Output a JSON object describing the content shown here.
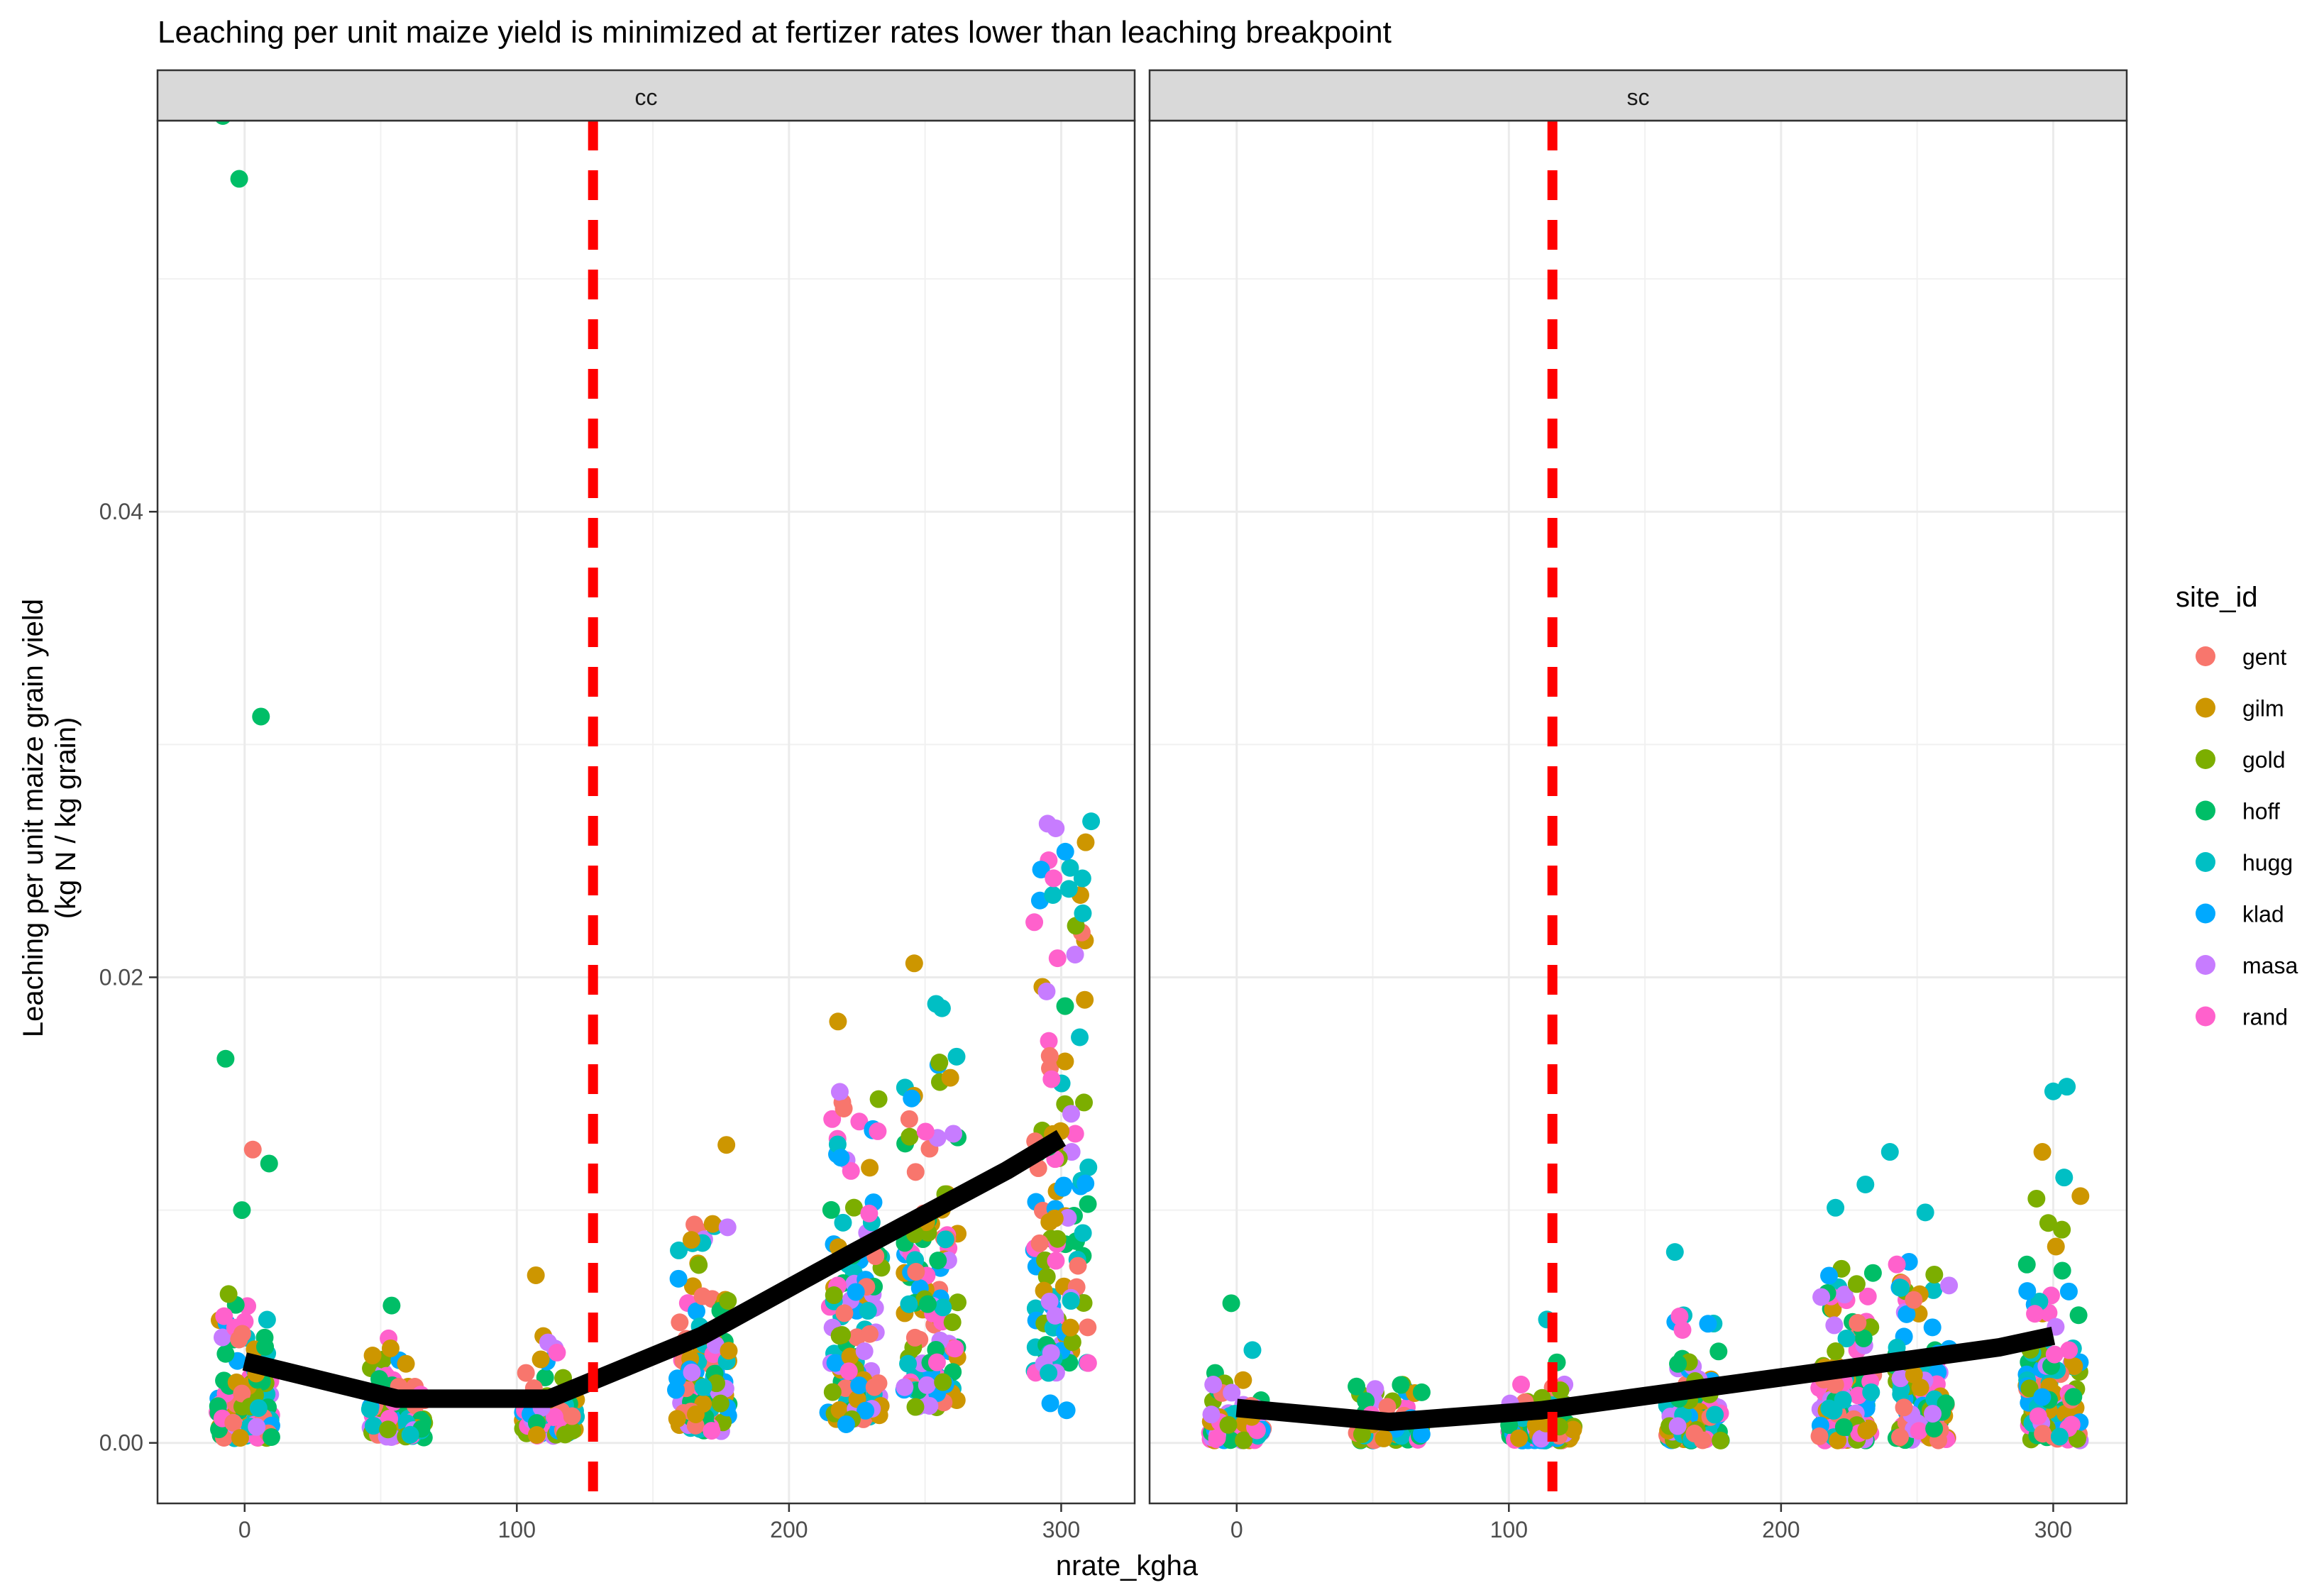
{
  "chart_data": {
    "type": "scatter",
    "title": "Leaching per unit maize yield is minimized at fertizer rates lower than leaching breakpoint",
    "xlabel": "nrate_kgha",
    "ylabel_lines": [
      "Leaching per unit maize grain yield",
      "(kg N / kg grain)"
    ],
    "xlim": [
      -32,
      327
    ],
    "ylim": [
      -0.0026,
      0.0568
    ],
    "x_ticks": [
      0,
      100,
      200,
      300
    ],
    "y_ticks": [
      0.0,
      0.02,
      0.04
    ],
    "y_tick_labels": [
      "0.00",
      "0.02",
      "0.04"
    ],
    "grid": true,
    "legend": {
      "title": "site_id",
      "placement": "right",
      "entries": [
        {
          "name": "gent",
          "color": "#F8766D"
        },
        {
          "name": "gilm",
          "color": "#CD9600"
        },
        {
          "name": "gold",
          "color": "#7CAE00"
        },
        {
          "name": "hoff",
          "color": "#00BE67"
        },
        {
          "name": "hugg",
          "color": "#00BFC4"
        },
        {
          "name": "klad",
          "color": "#00A9FF"
        },
        {
          "name": "masa",
          "color": "#C77CFF"
        },
        {
          "name": "rand",
          "color": "#FF61CC"
        }
      ]
    },
    "panels": [
      {
        "strip": "cc",
        "breakpoint_x": 128,
        "trend": {
          "x": [
            0,
            56,
            112,
            168,
            224,
            280,
            300
          ],
          "y": [
            0.0035,
            0.0019,
            0.0019,
            0.0046,
            0.0082,
            0.0117,
            0.0131
          ]
        },
        "clusters": [
          {
            "x": 0,
            "n": 120,
            "spread": 10,
            "min": 0.0002,
            "q": 0.0028,
            "max": 0.0065
          },
          {
            "x": 56,
            "n": 90,
            "spread": 10,
            "min": 0.0002,
            "q": 0.002,
            "max": 0.0045
          },
          {
            "x": 112,
            "n": 90,
            "spread": 10,
            "min": 0.0003,
            "q": 0.002,
            "max": 0.0048
          },
          {
            "x": 168,
            "n": 100,
            "spread": 10,
            "min": 0.0005,
            "q": 0.0045,
            "max": 0.0095
          },
          {
            "x": 224,
            "n": 120,
            "spread": 10,
            "min": 0.001,
            "q": 0.0085,
            "max": 0.0165
          },
          {
            "x": 252,
            "n": 120,
            "spread": 10,
            "min": 0.0015,
            "q": 0.0095,
            "max": 0.0195
          },
          {
            "x": 300,
            "n": 120,
            "spread": 10,
            "min": 0.003,
            "q": 0.015,
            "max": 0.0255
          }
        ],
        "outliers": [
          {
            "x": -8,
            "y": 0.057,
            "site": "hoff"
          },
          {
            "x": -2,
            "y": 0.0543,
            "site": "hoff"
          },
          {
            "x": 6,
            "y": 0.0312,
            "site": "hoff"
          },
          {
            "x": -7,
            "y": 0.0165,
            "site": "hoff"
          },
          {
            "x": 3,
            "y": 0.0126,
            "site": "gent"
          },
          {
            "x": 9,
            "y": 0.012,
            "site": "hoff"
          },
          {
            "x": -1,
            "y": 0.01,
            "site": "hoff"
          },
          {
            "x": 177,
            "y": 0.0128,
            "site": "gilm"
          },
          {
            "x": 107,
            "y": 0.0072,
            "site": "gilm"
          },
          {
            "x": 54,
            "y": 0.0059,
            "site": "hoff"
          },
          {
            "x": 246,
            "y": 0.0206,
            "site": "gilm"
          },
          {
            "x": 218,
            "y": 0.0181,
            "site": "gilm"
          },
          {
            "x": 295,
            "y": 0.0266,
            "site": "masa"
          },
          {
            "x": 311,
            "y": 0.0267,
            "site": "hugg"
          },
          {
            "x": 298,
            "y": 0.0264,
            "site": "masa"
          },
          {
            "x": 309,
            "y": 0.0258,
            "site": "gilm"
          },
          {
            "x": 296,
            "y": 0.0017,
            "site": "klad"
          },
          {
            "x": 302,
            "y": 0.0014,
            "site": "klad"
          },
          {
            "x": 221,
            "y": 0.0008,
            "site": "klad"
          }
        ]
      },
      {
        "strip": "sc",
        "breakpoint_x": 116,
        "trend": {
          "x": [
            0,
            56,
            112,
            168,
            224,
            280,
            300
          ],
          "y": [
            0.0015,
            0.0009,
            0.0014,
            0.0023,
            0.0032,
            0.0041,
            0.0046
          ]
        },
        "clusters": [
          {
            "x": 0,
            "n": 110,
            "spread": 10,
            "min": 0.0001,
            "q": 0.0015,
            "max": 0.004
          },
          {
            "x": 56,
            "n": 80,
            "spread": 12,
            "min": 0.0001,
            "q": 0.001,
            "max": 0.0025
          },
          {
            "x": 112,
            "n": 90,
            "spread": 12,
            "min": 0.0001,
            "q": 0.0012,
            "max": 0.0035
          },
          {
            "x": 168,
            "n": 100,
            "spread": 10,
            "min": 0.0001,
            "q": 0.002,
            "max": 0.0055
          },
          {
            "x": 224,
            "n": 110,
            "spread": 10,
            "min": 0.0001,
            "q": 0.0028,
            "max": 0.0075
          },
          {
            "x": 252,
            "n": 110,
            "spread": 10,
            "min": 0.0001,
            "q": 0.0032,
            "max": 0.008
          },
          {
            "x": 300,
            "n": 110,
            "spread": 10,
            "min": 0.0001,
            "q": 0.004,
            "max": 0.0105
          }
        ],
        "outliers": [
          {
            "x": -2,
            "y": 0.006,
            "site": "hoff"
          },
          {
            "x": 114,
            "y": 0.0053,
            "site": "hugg"
          },
          {
            "x": 161,
            "y": 0.0082,
            "site": "hugg"
          },
          {
            "x": 240,
            "y": 0.0125,
            "site": "hugg"
          },
          {
            "x": 220,
            "y": 0.0101,
            "site": "hugg"
          },
          {
            "x": 231,
            "y": 0.0111,
            "site": "hugg"
          },
          {
            "x": 253,
            "y": 0.0099,
            "site": "hugg"
          },
          {
            "x": 296,
            "y": 0.0125,
            "site": "gilm"
          },
          {
            "x": 300,
            "y": 0.0151,
            "site": "hugg"
          },
          {
            "x": 305,
            "y": 0.0153,
            "site": "hugg"
          },
          {
            "x": 304,
            "y": 0.0114,
            "site": "hugg"
          },
          {
            "x": 310,
            "y": 0.0106,
            "site": "gilm"
          }
        ]
      }
    ]
  }
}
